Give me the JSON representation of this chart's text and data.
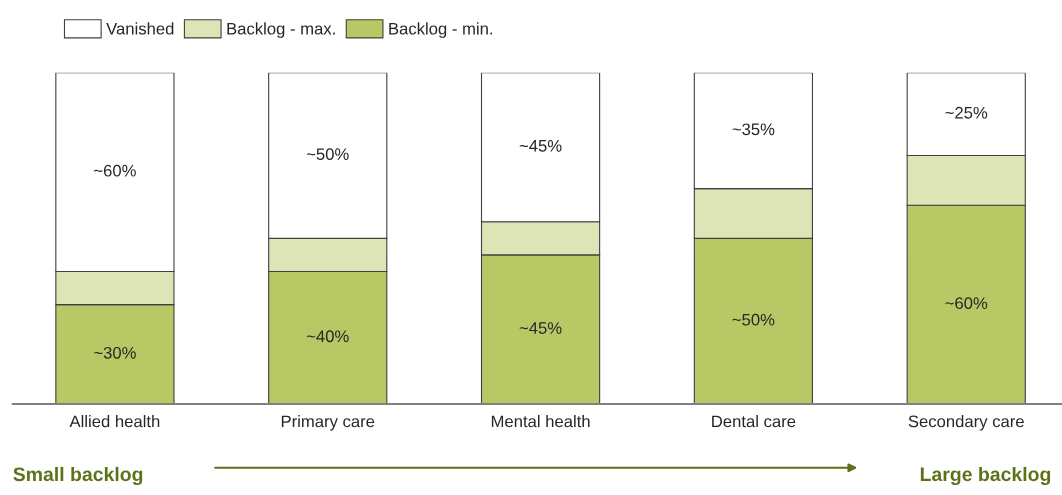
{
  "chart_data": {
    "type": "bar",
    "stacked": true,
    "legend": "top left",
    "grid": false,
    "categories": [
      "Allied health",
      "Primary care",
      "Mental health",
      "Dental care",
      "Secondary care"
    ],
    "series": [
      {
        "name": "Backlog - min.",
        "color": "#b8c865",
        "values": [
          30,
          40,
          45,
          50,
          60
        ],
        "value_labels": [
          "~30%",
          "~40%",
          "~45%",
          "~50%",
          "~60%"
        ]
      },
      {
        "name": "Backlog - max.",
        "color": "#dde5b7",
        "values": [
          10,
          10,
          10,
          15,
          15
        ],
        "value_labels": [
          null,
          null,
          null,
          null,
          null
        ]
      },
      {
        "name": "Vanished",
        "color": "#ffffff",
        "values": [
          60,
          50,
          45,
          35,
          25
        ],
        "value_labels": [
          "~60%",
          "~50%",
          "~45%",
          "~35%",
          "~25%"
        ]
      }
    ],
    "annotations": [
      "Small backlog",
      "Large backlog"
    ]
  }
}
